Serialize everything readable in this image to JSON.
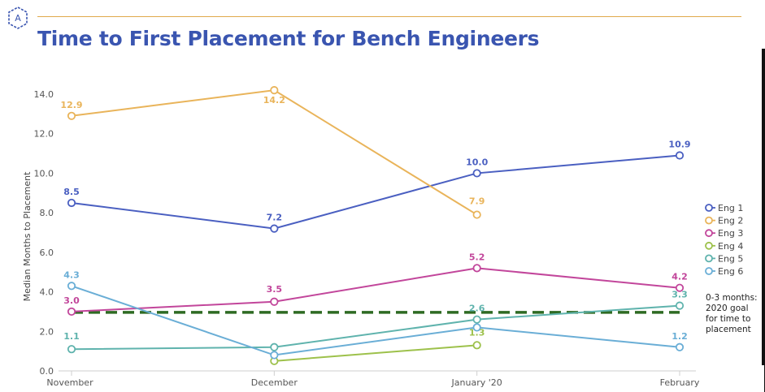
{
  "title": "Time to First Placement for Bench Engineers",
  "goal_note": "0-3 months: 2020 goal for time to placement",
  "chart_data": {
    "type": "line",
    "title": "Time to First Placement for Bench Engineers",
    "xlabel": "",
    "ylabel": "Median Months to Placement",
    "categories": [
      "November",
      "December",
      "January '20",
      "February"
    ],
    "ylim": [
      0,
      14
    ],
    "yticks": [
      "0.0",
      "2.0",
      "4.0",
      "6.0",
      "8.0",
      "10.0",
      "12.0",
      "14.0"
    ],
    "legend_position": "right",
    "series": [
      {
        "name": "Eng 1",
        "color": "#4a5fc1",
        "values": [
          8.5,
          7.2,
          10.0,
          10.9
        ],
        "labels": [
          "8.5",
          "7.2",
          "10.0",
          "10.9"
        ]
      },
      {
        "name": "Eng 2",
        "color": "#e9b45a",
        "values": [
          12.9,
          14.2,
          7.9,
          null
        ],
        "labels": [
          "12.9",
          "14.2",
          "7.9",
          null
        ]
      },
      {
        "name": "Eng 3",
        "color": "#c2469b",
        "values": [
          3.0,
          3.5,
          5.2,
          4.2
        ],
        "labels": [
          "3.0",
          "3.5",
          "5.2",
          "4.2"
        ]
      },
      {
        "name": "Eng 4",
        "color": "#9dc14b",
        "values": [
          null,
          0.5,
          1.3,
          null
        ],
        "labels": [
          null,
          null,
          "1.3",
          null
        ]
      },
      {
        "name": "Eng 5",
        "color": "#5fb3ad",
        "values": [
          1.1,
          1.2,
          2.6,
          3.3
        ],
        "labels": [
          "1.1",
          null,
          "2.6",
          "3.3"
        ]
      },
      {
        "name": "Eng 6",
        "color": "#6aaed6",
        "values": [
          4.3,
          0.8,
          2.2,
          1.2
        ],
        "labels": [
          "4.3",
          null,
          null,
          "1.2"
        ]
      }
    ],
    "goal_line": {
      "value": 3.0,
      "color": "#2e6b23"
    }
  }
}
